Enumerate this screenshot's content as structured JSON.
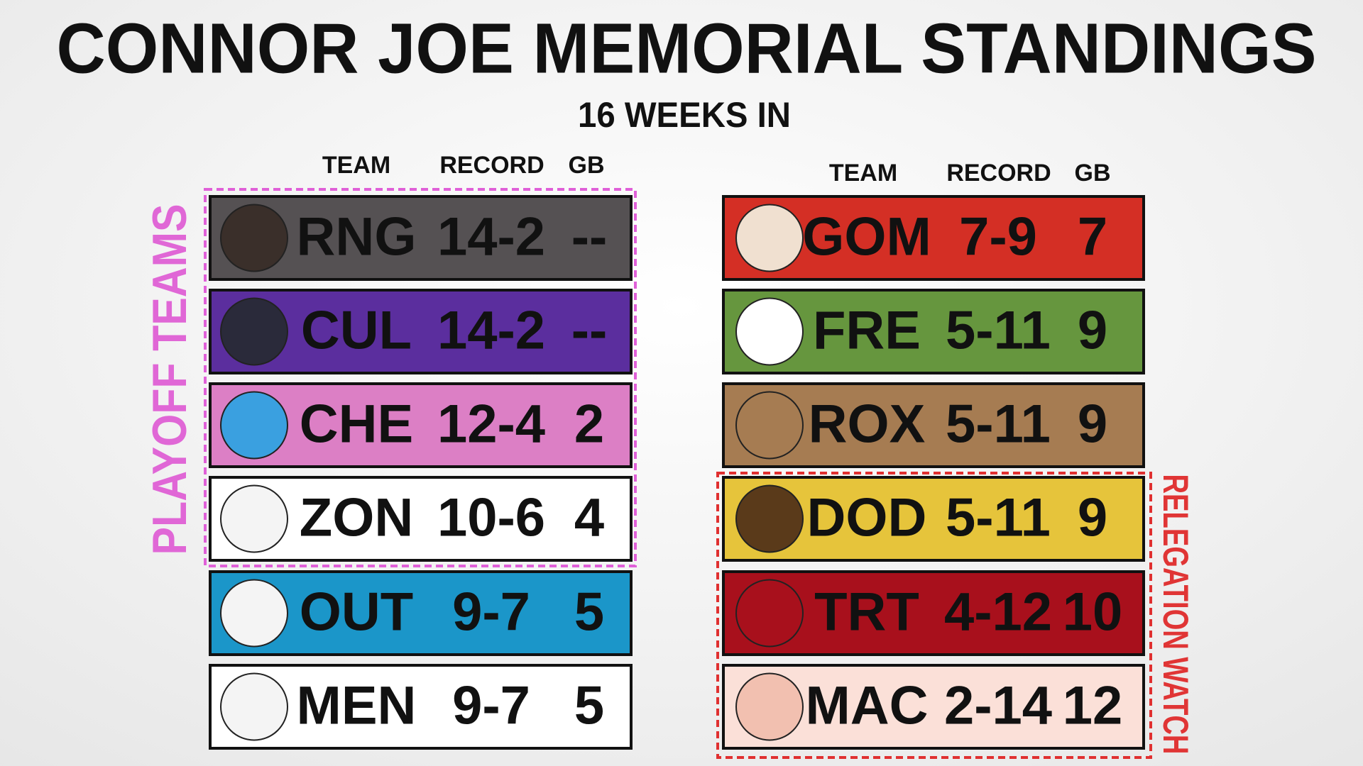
{
  "header": {
    "title": "CONNOR JOE MEMORIAL STANDINGS",
    "subtitle": "16 WEEKS IN"
  },
  "left_table": {
    "columns": [
      "TEAM",
      "RECORD",
      "GB"
    ],
    "rows": [
      [
        "RNG",
        "14-2",
        "--"
      ],
      [
        "CUL",
        "14-2",
        "--"
      ],
      [
        "CHE",
        "12-4",
        "2"
      ],
      [
        "ZON",
        "10-6",
        "4"
      ],
      [
        "OUT",
        "9-7",
        "5"
      ],
      [
        "MEN",
        "9-7",
        "5"
      ]
    ]
  },
  "right_table": {
    "columns": [
      "TEAM",
      "RECORD",
      "GB"
    ],
    "rows": [
      [
        "GOM",
        "7-9",
        "7"
      ],
      [
        "FRE",
        "5-11",
        "9"
      ],
      [
        "ROX",
        "5-11",
        "9"
      ],
      [
        "DOD",
        "5-11",
        "9"
      ],
      [
        "TRT",
        "4-12",
        "10"
      ],
      [
        "MAC",
        "2-14",
        "12"
      ]
    ]
  },
  "labels": {
    "playoff": "PLAYOFF TEAMS",
    "relegation": "RELEGATION WATCH"
  }
}
